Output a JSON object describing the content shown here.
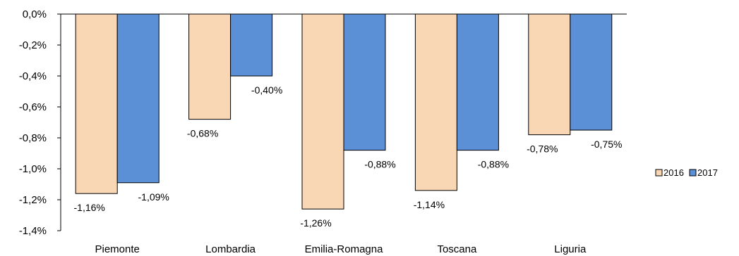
{
  "chart_data": {
    "type": "bar",
    "title": "",
    "xlabel": "",
    "ylabel": "",
    "categories": [
      "Piemonte",
      "Lombardia",
      "Emilia-Romagna",
      "Toscana",
      "Liguria"
    ],
    "series": [
      {
        "name": "2016",
        "color": "#FAD7B4",
        "values": [
          -1.16,
          -0.68,
          -1.26,
          -1.14,
          -0.78
        ],
        "labels": [
          "-1,16%",
          "-0,68%",
          "-1,26%",
          "-1,14%",
          "-0,78%"
        ]
      },
      {
        "name": "2017",
        "color": "#5B8FD6",
        "values": [
          -1.09,
          -0.4,
          -0.88,
          -0.88,
          -0.75
        ],
        "labels": [
          "-1,09%",
          "-0,40%",
          "-0,88%",
          "-0,88%",
          "-0,75%"
        ]
      }
    ],
    "ylim": [
      -1.4,
      0.0
    ],
    "yticks": [
      0.0,
      -0.2,
      -0.4,
      -0.6,
      -0.8,
      -1.0,
      -1.2,
      -1.4
    ],
    "ytick_labels": [
      "0,0%",
      "-0,2%",
      "-0,4%",
      "-0,6%",
      "-0,8%",
      "-1,0%",
      "-1,2%",
      "-1,4%"
    ],
    "grid": false,
    "legend_position": "right"
  }
}
